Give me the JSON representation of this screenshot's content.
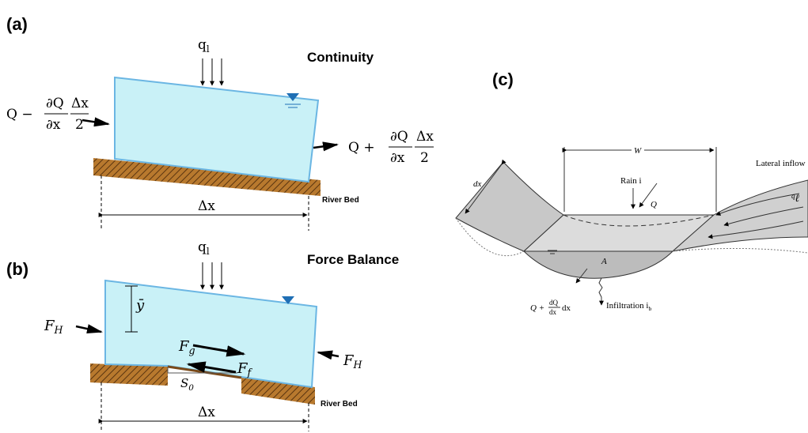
{
  "panels": [
    {
      "label": "(a)",
      "title": "Continuity",
      "lateral_inflow": {
        "base": "q",
        "sub": "l"
      },
      "inflow": {
        "lead": "Q −",
        "num1": "∂Q",
        "den1": "∂x",
        "num2": "Δx",
        "den2": "2"
      },
      "outflow": {
        "lead": "Q +",
        "num1": "∂Q",
        "den1": "∂x",
        "num2": "Δx",
        "den2": "2"
      },
      "bed_label": "River Bed",
      "length": "Δx"
    },
    {
      "label": "(b)",
      "title": "Force Balance",
      "lateral_inflow": {
        "base": "q",
        "sub": "l"
      },
      "left_force": {
        "base": "F",
        "sub": "H"
      },
      "right_force": {
        "base": "F",
        "sub": "H"
      },
      "depth": "ȳ",
      "gravity": {
        "base": "F",
        "sub": "g"
      },
      "friction": {
        "base": "F",
        "sub": "f"
      },
      "slope": {
        "base": "S",
        "sub": "0"
      },
      "bed_label": "River Bed",
      "length": "Δx"
    },
    {
      "label": "(c)",
      "width": "W",
      "rain": "Rain i",
      "flow": "Q",
      "lateral_inflow_label": "Lateral inflow",
      "lateral_inflow": {
        "base": "q",
        "sub": "ℓ"
      },
      "dx": "dx",
      "area": "A",
      "outflow": {
        "lead": "Q +",
        "num": "dQ",
        "den": "dx",
        "tail": "dx"
      },
      "infiltration": {
        "base": "Infiltration i",
        "sub": "b"
      }
    }
  ]
}
